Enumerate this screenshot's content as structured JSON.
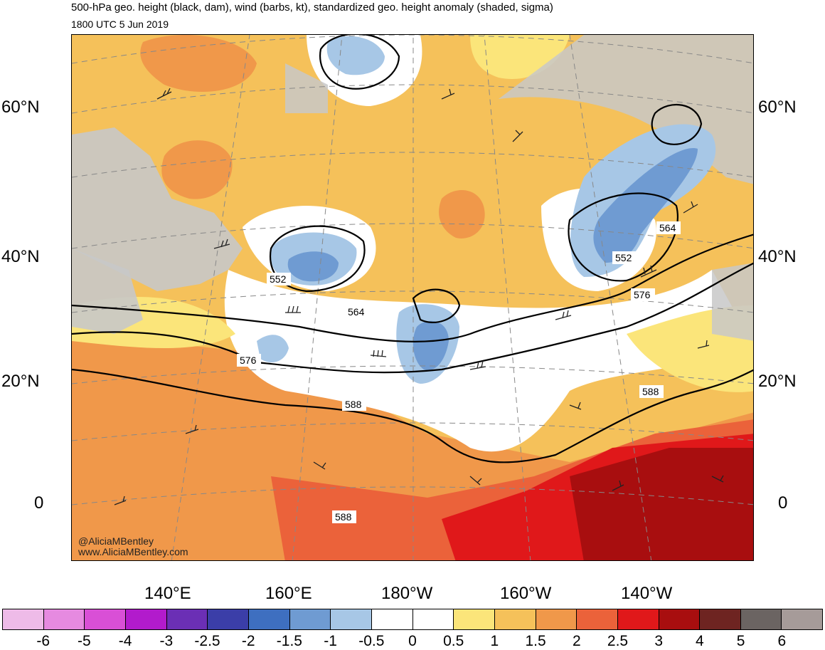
{
  "title": "500-hPa geo. height (black, dam), wind (barbs, kt), standardized geo. height anomaly (shaded, sigma)",
  "valid_time": "1800 UTC 5 Jun 2019",
  "lat_labels": [
    "60°N",
    "40°N",
    "20°N",
    "0"
  ],
  "lon_labels": [
    "140°E",
    "160°E",
    "180°W",
    "160°W",
    "140°W"
  ],
  "contour_labels": [
    "552",
    "564",
    "576",
    "588",
    "564",
    "552",
    "576",
    "588",
    "588"
  ],
  "credit": {
    "handle": "@AliciaMBentley",
    "site": "www.AliciaMBentley.com"
  },
  "colorbar": {
    "colors": [
      "#eebbe8",
      "#e68ae0",
      "#d94fd6",
      "#b21bcc",
      "#6b2fb5",
      "#3b3ea8",
      "#3e6fc0",
      "#6f9bd2",
      "#a7c7e6",
      "#ffffff",
      "#ffffff",
      "#fbe57a",
      "#f5c15a",
      "#f0984a",
      "#eb623a",
      "#e0181a",
      "#a80e0f",
      "#6e2421",
      "#6b6462",
      "#a69b99"
    ],
    "labels": [
      "-6",
      "-5",
      "-4",
      "-3",
      "-2.5",
      "-2",
      "-1.5",
      "-1",
      "-0.5",
      "0",
      "0.5",
      "1",
      "1.5",
      "2",
      "2.5",
      "3",
      "4",
      "5",
      "6"
    ]
  }
}
